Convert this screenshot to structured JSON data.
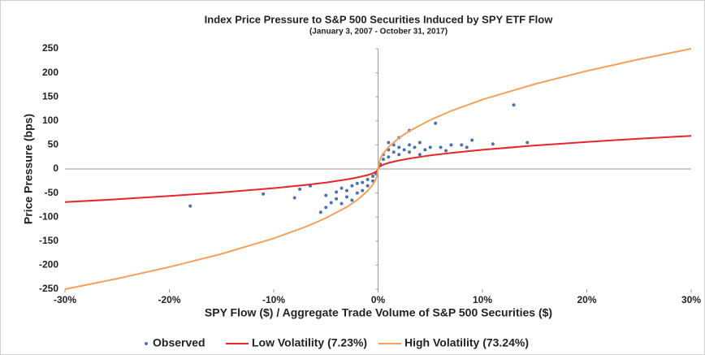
{
  "chart_data": {
    "type": "scatter",
    "title": "Index Price Pressure to S&P 500 Securities Induced by SPY ETF Flow",
    "subtitle": "(January 3, 2007 - October 31, 2017)",
    "xlabel": "SPY Flow ($) / Aggregate Trade Volume of S&P 500 Securities ($)",
    "ylabel": "Price Pressure (bps)",
    "xlim": [
      -30,
      30
    ],
    "xticks": [
      {
        "value": -30,
        "label": "-30%"
      },
      {
        "value": -20,
        "label": "-20%"
      },
      {
        "value": -10,
        "label": "-10%"
      },
      {
        "value": 0,
        "label": "0%"
      },
      {
        "value": 10,
        "label": "10%"
      },
      {
        "value": 20,
        "label": "20%"
      },
      {
        "value": 30,
        "label": "30%"
      }
    ],
    "ylim": [
      -250,
      250
    ],
    "yticks": [
      -250,
      -200,
      -150,
      -100,
      -50,
      0,
      50,
      100,
      150,
      200,
      250
    ],
    "legend": "bottom",
    "series": [
      {
        "name": "Observed",
        "type": "scatter",
        "color": "#4a72b0",
        "x": [
          -18,
          -11,
          -8,
          -7.5,
          -6.5,
          -5.5,
          -5,
          -5,
          -4.5,
          -4,
          -4,
          -3.5,
          -3.5,
          -3,
          -3,
          -2.5,
          -2.5,
          -2,
          -2,
          -1.5,
          -1.5,
          -1,
          -1,
          -0.5,
          -0.5,
          -0.2,
          0.2,
          0.5,
          0.5,
          1,
          1,
          1,
          1.5,
          1.5,
          2,
          2,
          2,
          2.5,
          3,
          3,
          3,
          3.5,
          4,
          4,
          4.5,
          5,
          5.5,
          6,
          6.5,
          7,
          8,
          8.5,
          9,
          11,
          13,
          14.3
        ],
        "values": [
          -77,
          -52,
          -60,
          -42,
          -35,
          -90,
          -80,
          -55,
          -70,
          -48,
          -62,
          -72,
          -40,
          -58,
          -45,
          -65,
          -35,
          -50,
          -30,
          -45,
          -28,
          -35,
          -22,
          -25,
          -15,
          -10,
          10,
          20,
          30,
          25,
          40,
          55,
          35,
          50,
          30,
          45,
          65,
          40,
          35,
          50,
          80,
          45,
          30,
          55,
          40,
          45,
          95,
          45,
          38,
          50,
          50,
          45,
          60,
          52,
          133,
          55
        ]
      },
      {
        "name": "Low Volatility (7.23%)",
        "type": "line",
        "color": "#e8262a",
        "x": [
          -30,
          -25,
          -20,
          -15,
          -10,
          -7,
          -5,
          -3,
          -2,
          -1,
          -0.5,
          -0.25,
          -0.1,
          0,
          0.1,
          0.25,
          0.5,
          1,
          2,
          3,
          5,
          7,
          10,
          15,
          20,
          25,
          30
        ],
        "values": [
          -69,
          -63,
          -56.3,
          -48.8,
          -39.8,
          -33.3,
          -28.2,
          -21.8,
          -17.8,
          -12.6,
          -8.9,
          -6.3,
          -4,
          0,
          4,
          6.3,
          8.9,
          12.6,
          17.8,
          21.8,
          28.2,
          33.3,
          39.8,
          48.8,
          56.3,
          63,
          69
        ]
      },
      {
        "name": "High Volatility (73.24%)",
        "type": "line",
        "color": "#f6a05a",
        "x": [
          -30,
          -25,
          -20,
          -15,
          -10,
          -7,
          -5,
          -3,
          -2,
          -1,
          -0.5,
          -0.25,
          -0.1,
          0,
          0.1,
          0.25,
          0.5,
          1,
          2,
          3,
          5,
          7,
          10,
          15,
          20,
          25,
          30
        ],
        "values": [
          -250,
          -228,
          -203.9,
          -176.6,
          -144.2,
          -120.7,
          -102,
          -79,
          -64.5,
          -45.6,
          -32.2,
          -22.8,
          -14.4,
          0,
          14.4,
          22.8,
          32.2,
          45.6,
          64.5,
          79,
          102,
          120.7,
          144.2,
          176.6,
          203.9,
          228,
          250
        ]
      }
    ]
  }
}
